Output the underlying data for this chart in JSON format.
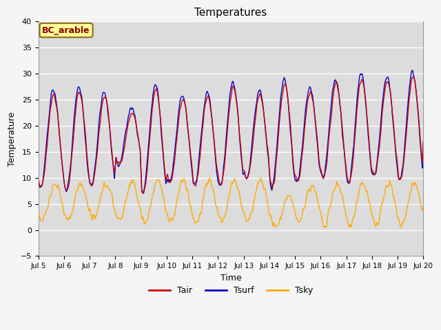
{
  "title": "Temperatures",
  "xlabel": "Time",
  "ylabel": "Temperature",
  "ylim": [
    -5,
    40
  ],
  "xlim_days": [
    5,
    20
  ],
  "plot_bg_color": "#dcdcdc",
  "fig_bg_color": "#f5f5f5",
  "tair_color": "#cc0000",
  "tsurf_color": "#0000cc",
  "tsky_color": "#ffaa00",
  "annotation_text": "BC_arable",
  "legend_labels": [
    "Tair",
    "Tsurf",
    "Tsky"
  ],
  "yticks": [
    -5,
    0,
    5,
    10,
    15,
    20,
    25,
    30,
    35,
    40
  ],
  "xtick_labels": [
    "Jul 5",
    "Jul 6",
    "Jul 7",
    "Jul 8",
    "Jul 9",
    "Jul 10",
    "Jul 11",
    "Jul 12",
    "Jul 13",
    "Jul 14",
    "Jul 15",
    "Jul 16",
    "Jul 17",
    "Jul 18",
    "Jul 19",
    "Jul 20"
  ]
}
